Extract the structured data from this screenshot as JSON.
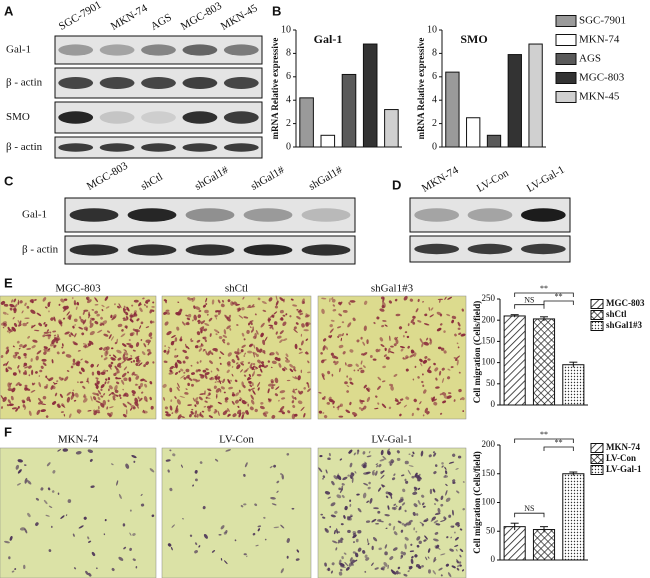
{
  "figure": {
    "panel_labels": [
      "A",
      "B",
      "C",
      "D",
      "E",
      "F"
    ],
    "blot_a": {
      "lanes": [
        "SGC-7901",
        "MKN-74",
        "AGS",
        "MGC-803",
        "MKN-45"
      ],
      "rows": [
        "Gal-1",
        "β - actin",
        "SMO",
        "β - actin"
      ]
    },
    "blot_c": {
      "lanes": [
        "MGC-803",
        "shCtl",
        "shGal1#",
        "shGal1#",
        "shGal1#"
      ],
      "rows": [
        "Gal-1",
        "β - actin"
      ]
    },
    "blot_d": {
      "lanes": [
        "MKN-74",
        "LV-Con",
        "LV-Gal-1"
      ]
    },
    "images_e": [
      "MGC-803",
      "shCtl",
      "shGal1#3"
    ],
    "images_f": [
      "MKN-74",
      "LV-Con",
      "LV-Gal-1"
    ]
  },
  "chart_data": [
    {
      "type": "bar",
      "categories": [
        "Gal-1",
        "SMO"
      ],
      "ylabel": "mRNA Relative expressive",
      "ylim": [
        0,
        10
      ],
      "yticks": [
        0,
        2,
        4,
        6,
        8,
        10
      ],
      "legend": "right",
      "series": [
        {
          "name": "SGC-7901",
          "color": "#9a9a9a",
          "values": [
            4.2,
            6.4
          ]
        },
        {
          "name": "MKN-74",
          "color": "#ffffff",
          "values": [
            1.0,
            2.5
          ]
        },
        {
          "name": "AGS",
          "color": "#5a5a5a",
          "values": [
            6.2,
            1.0
          ]
        },
        {
          "name": "MGC-803",
          "color": "#333333",
          "values": [
            8.8,
            7.9
          ]
        },
        {
          "name": "MKN-45",
          "color": "#d0d0d0",
          "values": [
            3.2,
            8.8
          ]
        }
      ]
    },
    {
      "type": "bar",
      "categories": [
        "MGC-803",
        "shCtl",
        "shGal1#3"
      ],
      "values": [
        210,
        203,
        95
      ],
      "errors": [
        3,
        5,
        6
      ],
      "patterns": [
        "diagonal",
        "cross",
        "dots"
      ],
      "ylabel": "Cell migration (Cells/field)",
      "ylim": [
        0,
        250
      ],
      "yticks": [
        0,
        50,
        100,
        150,
        200,
        250
      ],
      "annotations": [
        "NS",
        "**",
        "**"
      ],
      "legend": "right"
    },
    {
      "type": "bar",
      "categories": [
        "MKN-74",
        "LV-Con",
        "LV-Gal-1"
      ],
      "values": [
        58,
        53,
        150
      ],
      "errors": [
        6,
        5,
        3
      ],
      "patterns": [
        "diagonal",
        "cross",
        "dots"
      ],
      "ylabel": "Cell migration (Cells/field)",
      "ylim": [
        0,
        200
      ],
      "yticks": [
        0,
        50,
        100,
        150,
        200
      ],
      "annotations": [
        "NS",
        "**",
        "**"
      ],
      "legend": "right"
    }
  ]
}
